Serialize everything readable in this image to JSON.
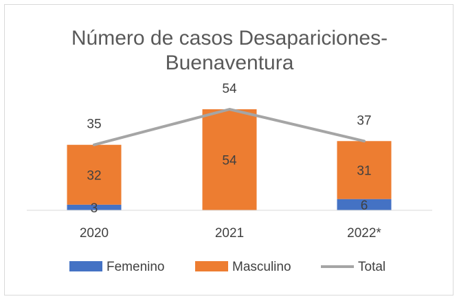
{
  "chart_data": {
    "type": "bar",
    "stacked": true,
    "title_lines": [
      "Número de casos Desapariciones-",
      "Buenaventura"
    ],
    "categories": [
      "2020",
      "2021",
      "2022*"
    ],
    "series": [
      {
        "name": "Femenino",
        "kind": "bar",
        "color": "#4472c4",
        "values": [
          3,
          0,
          6
        ],
        "labels": [
          "3",
          "",
          "6"
        ]
      },
      {
        "name": "Masculino",
        "kind": "bar",
        "color": "#ed7d31",
        "values": [
          32,
          54,
          31
        ],
        "labels": [
          "32",
          "54",
          "31"
        ]
      },
      {
        "name": "Total",
        "kind": "line",
        "color": "#a5a5a5",
        "values": [
          35,
          54,
          37
        ],
        "labels": [
          "35",
          "54",
          "37"
        ]
      }
    ],
    "ylim": [
      0,
      54
    ],
    "grid": false,
    "legend": "bottom"
  }
}
